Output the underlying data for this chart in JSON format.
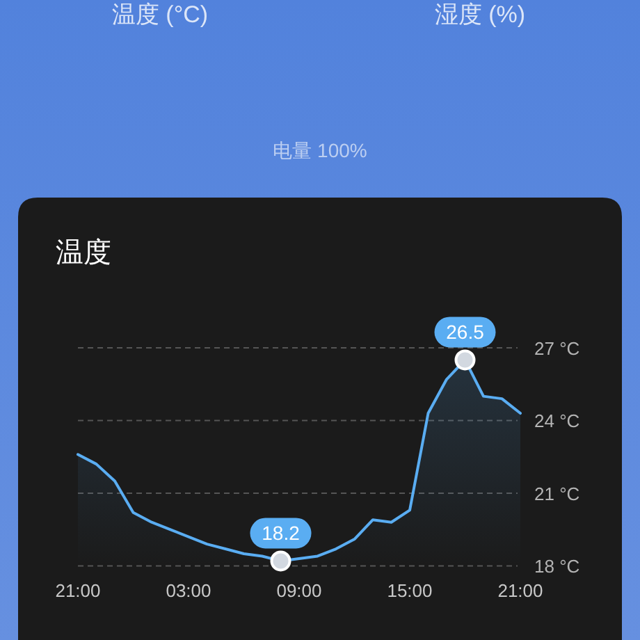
{
  "chart_data": {
    "type": "area",
    "title": "温度",
    "annotations": [
      "温度 (°C)",
      "湿度 (%)",
      "电量 100%"
    ],
    "categories": [
      "21:00",
      null,
      null,
      null,
      null,
      null,
      "03:00",
      null,
      null,
      null,
      null,
      null,
      "09:00",
      null,
      null,
      null,
      null,
      null,
      "15:00",
      null,
      null,
      null,
      null,
      null,
      "21:00"
    ],
    "series": [
      {
        "color": "#5aadf2",
        "values": [
          22.6,
          22.2,
          21.5,
          20.2,
          19.8,
          19.5,
          19.2,
          18.9,
          18.7,
          18.5,
          18.4,
          18.2,
          18.3,
          18.4,
          18.7,
          19.1,
          19.9,
          19.8,
          20.3,
          24.3,
          25.7,
          26.5,
          25.0,
          24.9,
          24.3
        ],
        "value_labels": [
          null,
          null,
          null,
          null,
          null,
          null,
          null,
          null,
          null,
          null,
          null,
          "18.2",
          null,
          null,
          null,
          null,
          null,
          null,
          null,
          null,
          null,
          "26.5",
          null,
          null,
          null
        ]
      }
    ],
    "ylim": [
      18,
      27
    ],
    "yticks": [
      {
        "value": 18,
        "label": "18 °C"
      },
      {
        "value": 21,
        "label": "21 °C"
      },
      {
        "value": 24,
        "label": "24 °C"
      },
      {
        "value": 27,
        "label": "27 °C"
      }
    ],
    "grid": "y"
  }
}
